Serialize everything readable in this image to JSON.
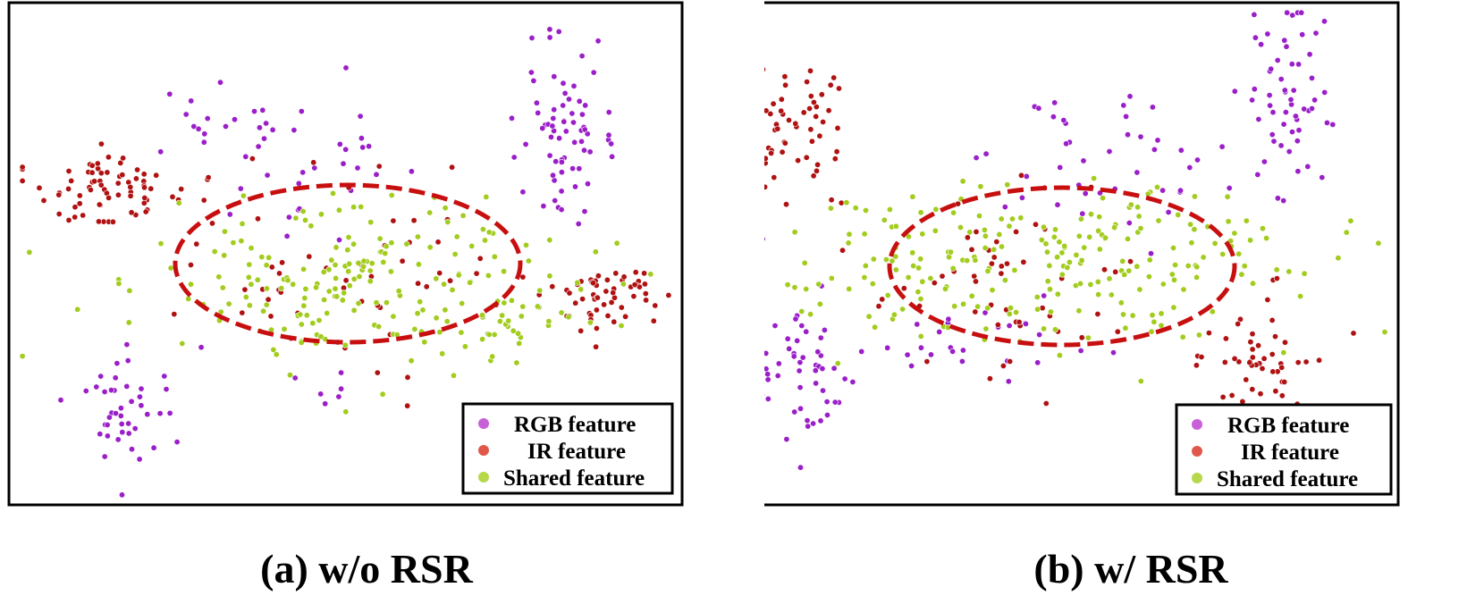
{
  "colors": {
    "rgb": "#9b1fc9",
    "ir": "#b01212",
    "shared": "#a2cc1e",
    "legend_rgb": "#c861d8",
    "legend_ir": "#e0584a",
    "legend_shared": "#b6d84a",
    "ellipse": "#c80f0f"
  },
  "legend": {
    "rgb": "RGB feature",
    "ir": "IR feature",
    "shared": "Shared feature"
  },
  "chart_data": [
    {
      "type": "scatter",
      "title": "(a) w/o RSR",
      "xlabel": "",
      "ylabel": "",
      "grid": false,
      "legend_position": "bottom-right",
      "series": [
        {
          "name": "RGB feature",
          "clusters": [
            {
              "cx": 0.82,
              "cy": 0.22,
              "sx": 0.035,
              "sy": 0.1,
              "n": 70
            },
            {
              "cx": 0.17,
              "cy": 0.82,
              "sx": 0.04,
              "sy": 0.07,
              "n": 45
            },
            {
              "cx": 0.4,
              "cy": 0.3,
              "sx": 0.1,
              "sy": 0.08,
              "n": 45
            },
            {
              "cx": 0.47,
              "cy": 0.76,
              "sx": 0.03,
              "sy": 0.02,
              "n": 6
            }
          ]
        },
        {
          "name": "IR feature",
          "clusters": [
            {
              "cx": 0.14,
              "cy": 0.37,
              "sx": 0.06,
              "sy": 0.035,
              "n": 70
            },
            {
              "cx": 0.88,
              "cy": 0.59,
              "sx": 0.04,
              "sy": 0.035,
              "n": 55
            },
            {
              "cx": 0.48,
              "cy": 0.53,
              "sx": 0.13,
              "sy": 0.09,
              "n": 55
            }
          ]
        },
        {
          "name": "Shared feature",
          "clusters": [
            {
              "cx": 0.52,
              "cy": 0.55,
              "sx": 0.17,
              "sy": 0.09,
              "n": 190
            },
            {
              "cx": 0.75,
              "cy": 0.62,
              "sx": 0.04,
              "sy": 0.06,
              "n": 30
            }
          ]
        }
      ]
    },
    {
      "type": "scatter",
      "title": "(b) w/ RSR",
      "xlabel": "",
      "ylabel": "",
      "grid": false,
      "legend_position": "bottom-right",
      "series": [
        {
          "name": "RGB feature",
          "clusters": [
            {
              "cx": 0.83,
              "cy": 0.16,
              "sx": 0.03,
              "sy": 0.09,
              "n": 55
            },
            {
              "cx": 0.11,
              "cy": 0.73,
              "sx": 0.04,
              "sy": 0.08,
              "n": 55
            },
            {
              "cx": 0.58,
              "cy": 0.3,
              "sx": 0.12,
              "sy": 0.06,
              "n": 45
            },
            {
              "cx": 0.35,
              "cy": 0.68,
              "sx": 0.08,
              "sy": 0.05,
              "n": 25
            }
          ]
        },
        {
          "name": "IR feature",
          "clusters": [
            {
              "cx": 0.09,
              "cy": 0.24,
              "sx": 0.05,
              "sy": 0.06,
              "n": 65
            },
            {
              "cx": 0.78,
              "cy": 0.72,
              "sx": 0.05,
              "sy": 0.06,
              "n": 50
            },
            {
              "cx": 0.42,
              "cy": 0.53,
              "sx": 0.12,
              "sy": 0.09,
              "n": 50
            }
          ]
        },
        {
          "name": "Shared feature",
          "clusters": [
            {
              "cx": 0.49,
              "cy": 0.53,
              "sx": 0.2,
              "sy": 0.08,
              "n": 230
            }
          ]
        }
      ]
    }
  ]
}
